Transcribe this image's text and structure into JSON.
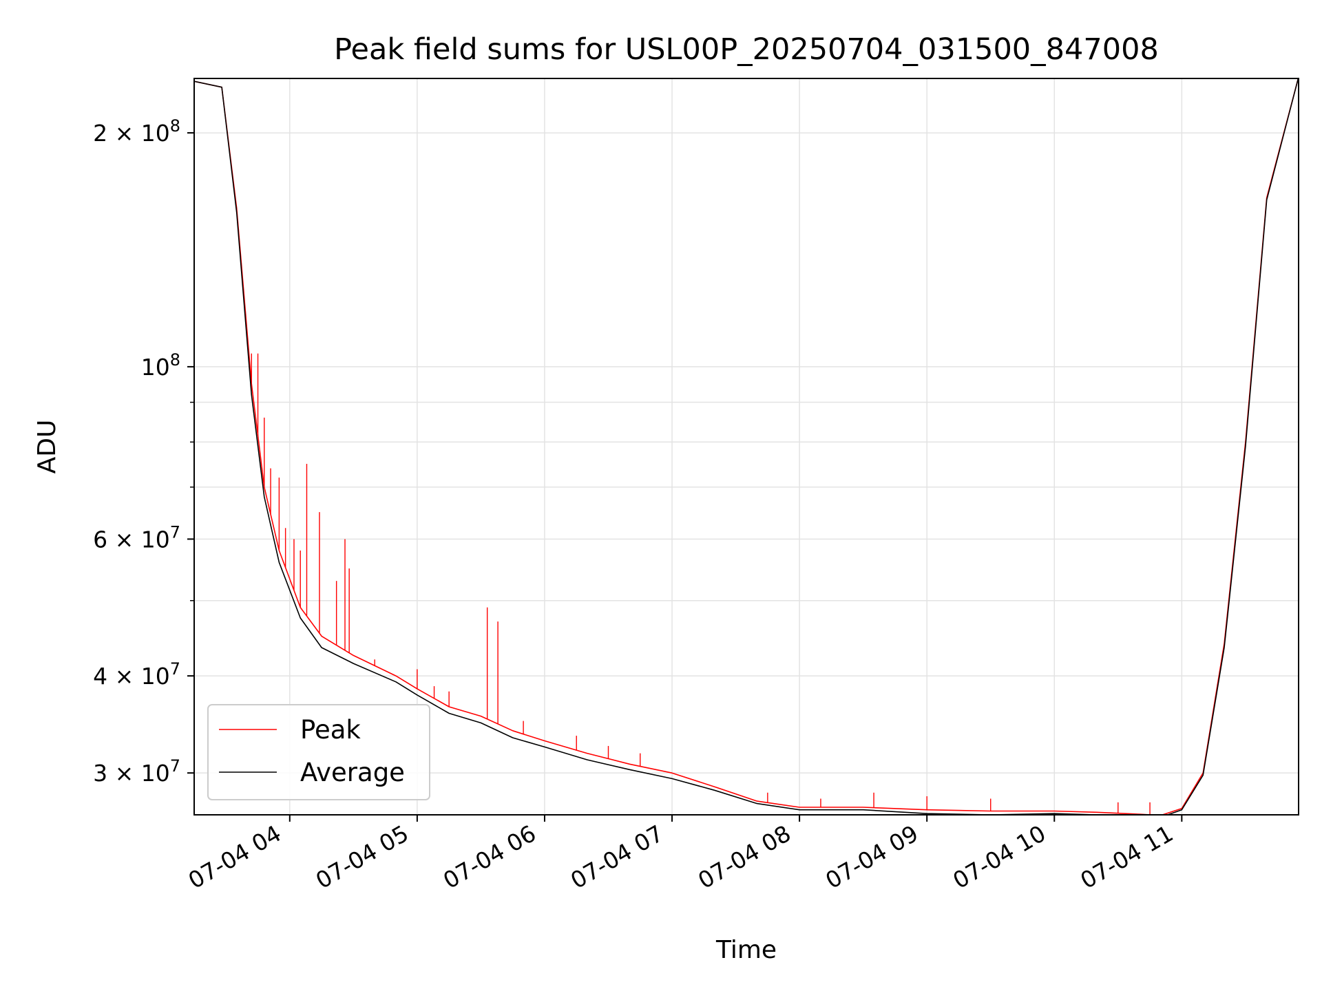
{
  "chart_data": {
    "type": "line",
    "title": "Peak field sums for USL00P_20250704_031500_847008",
    "xlabel": "Time",
    "ylabel": "ADU",
    "yscale": "log",
    "xlim": [
      "2025-07-04 03:15",
      "2025-07-04 11:55"
    ],
    "ylim": [
      26500000,
      235000000
    ],
    "grid": true,
    "legend_position": "lower-left",
    "x_ticks": [
      {
        "value": "2025-07-04 04:00",
        "label": "07-04 04"
      },
      {
        "value": "2025-07-04 05:00",
        "label": "07-04 05"
      },
      {
        "value": "2025-07-04 06:00",
        "label": "07-04 06"
      },
      {
        "value": "2025-07-04 07:00",
        "label": "07-04 07"
      },
      {
        "value": "2025-07-04 08:00",
        "label": "07-04 08"
      },
      {
        "value": "2025-07-04 09:00",
        "label": "07-04 09"
      },
      {
        "value": "2025-07-04 10:00",
        "label": "07-04 10"
      },
      {
        "value": "2025-07-04 11:00",
        "label": "07-04 11"
      }
    ],
    "y_ticks": [
      {
        "value": 200000000,
        "mant": "2",
        "exp": "8"
      },
      {
        "value": 100000000,
        "mant": "",
        "exp": "8"
      },
      {
        "value": 60000000,
        "mant": "6",
        "exp": "7"
      },
      {
        "value": 40000000,
        "mant": "4",
        "exp": "7"
      },
      {
        "value": 30000000,
        "mant": "3",
        "exp": "7"
      }
    ],
    "y_minor_ticks": [
      50000000,
      70000000,
      80000000,
      90000000
    ],
    "series": [
      {
        "name": "Peak",
        "color": "#ff0000",
        "x": [
          "2025-07-04 03:15",
          "2025-07-04 03:28",
          "2025-07-04 03:35",
          "2025-07-04 03:42",
          "2025-07-04 03:48",
          "2025-07-04 03:55",
          "2025-07-04 04:05",
          "2025-07-04 04:15",
          "2025-07-04 04:30",
          "2025-07-04 04:50",
          "2025-07-04 05:00",
          "2025-07-04 05:15",
          "2025-07-04 05:30",
          "2025-07-04 05:45",
          "2025-07-04 06:00",
          "2025-07-04 06:20",
          "2025-07-04 06:40",
          "2025-07-04 07:00",
          "2025-07-04 07:20",
          "2025-07-04 07:40",
          "2025-07-04 08:00",
          "2025-07-04 08:30",
          "2025-07-04 09:00",
          "2025-07-04 09:30",
          "2025-07-04 10:00",
          "2025-07-04 10:20",
          "2025-07-04 10:40",
          "2025-07-04 10:50",
          "2025-07-04 11:00",
          "2025-07-04 11:10",
          "2025-07-04 11:20",
          "2025-07-04 11:30",
          "2025-07-04 11:40",
          "2025-07-04 11:55"
        ],
        "y": [
          233000000,
          229000000,
          160000000,
          95000000,
          70000000,
          58000000,
          49000000,
          45000000,
          42500000,
          40000000,
          38500000,
          36500000,
          35500000,
          34000000,
          33000000,
          31800000,
          30800000,
          30000000,
          28800000,
          27600000,
          27100000,
          27100000,
          26900000,
          26800000,
          26800000,
          26700000,
          26550000,
          26450000,
          27000000,
          30000000,
          44000000,
          80000000,
          165000000,
          236000000
        ],
        "spikes": [
          [
            "2025-07-04 03:42",
            104000000
          ],
          [
            "2025-07-04 03:45",
            104000000
          ],
          [
            "2025-07-04 03:48",
            86000000
          ],
          [
            "2025-07-04 03:51",
            74000000
          ],
          [
            "2025-07-04 03:55",
            72000000
          ],
          [
            "2025-07-04 03:58",
            62000000
          ],
          [
            "2025-07-04 04:02",
            60000000
          ],
          [
            "2025-07-04 04:05",
            58000000
          ],
          [
            "2025-07-04 04:08",
            75000000
          ],
          [
            "2025-07-04 04:14",
            65000000
          ],
          [
            "2025-07-04 04:22",
            53000000
          ],
          [
            "2025-07-04 04:26",
            60000000
          ],
          [
            "2025-07-04 04:28",
            55000000
          ],
          [
            "2025-07-04 04:40",
            42000000
          ],
          [
            "2025-07-04 05:00",
            40800000
          ],
          [
            "2025-07-04 05:08",
            38800000
          ],
          [
            "2025-07-04 05:15",
            38200000
          ],
          [
            "2025-07-04 05:33",
            49000000
          ],
          [
            "2025-07-04 05:38",
            47000000
          ],
          [
            "2025-07-04 05:50",
            35000000
          ],
          [
            "2025-07-04 06:15",
            33500000
          ],
          [
            "2025-07-04 06:30",
            32500000
          ],
          [
            "2025-07-04 06:45",
            31800000
          ],
          [
            "2025-07-04 07:45",
            28300000
          ],
          [
            "2025-07-04 08:10",
            27800000
          ],
          [
            "2025-07-04 08:35",
            28300000
          ],
          [
            "2025-07-04 09:00",
            28000000
          ],
          [
            "2025-07-04 09:30",
            27800000
          ],
          [
            "2025-07-04 10:30",
            27500000
          ],
          [
            "2025-07-04 10:45",
            27500000
          ]
        ]
      },
      {
        "name": "Average",
        "color": "#000000",
        "x": [
          "2025-07-04 03:15",
          "2025-07-04 03:28",
          "2025-07-04 03:35",
          "2025-07-04 03:42",
          "2025-07-04 03:48",
          "2025-07-04 03:55",
          "2025-07-04 04:05",
          "2025-07-04 04:15",
          "2025-07-04 04:30",
          "2025-07-04 04:50",
          "2025-07-04 05:00",
          "2025-07-04 05:15",
          "2025-07-04 05:30",
          "2025-07-04 05:45",
          "2025-07-04 06:00",
          "2025-07-04 06:20",
          "2025-07-04 06:40",
          "2025-07-04 07:00",
          "2025-07-04 07:20",
          "2025-07-04 07:40",
          "2025-07-04 08:00",
          "2025-07-04 08:30",
          "2025-07-04 09:00",
          "2025-07-04 09:30",
          "2025-07-04 10:00",
          "2025-07-04 10:20",
          "2025-07-04 10:40",
          "2025-07-04 10:50",
          "2025-07-04 11:00",
          "2025-07-04 11:10",
          "2025-07-04 11:20",
          "2025-07-04 11:30",
          "2025-07-04 11:40",
          "2025-07-04 11:55"
        ],
        "y": [
          233000000,
          229000000,
          158000000,
          92000000,
          68000000,
          56000000,
          47500000,
          43500000,
          41500000,
          39300000,
          37800000,
          35800000,
          34800000,
          33300000,
          32400000,
          31200000,
          30300000,
          29500000,
          28500000,
          27400000,
          26900000,
          26900000,
          26600000,
          26500000,
          26600000,
          26500000,
          26300000,
          26300000,
          26900000,
          29800000,
          43500000,
          79000000,
          164000000,
          236000000
        ]
      }
    ]
  }
}
